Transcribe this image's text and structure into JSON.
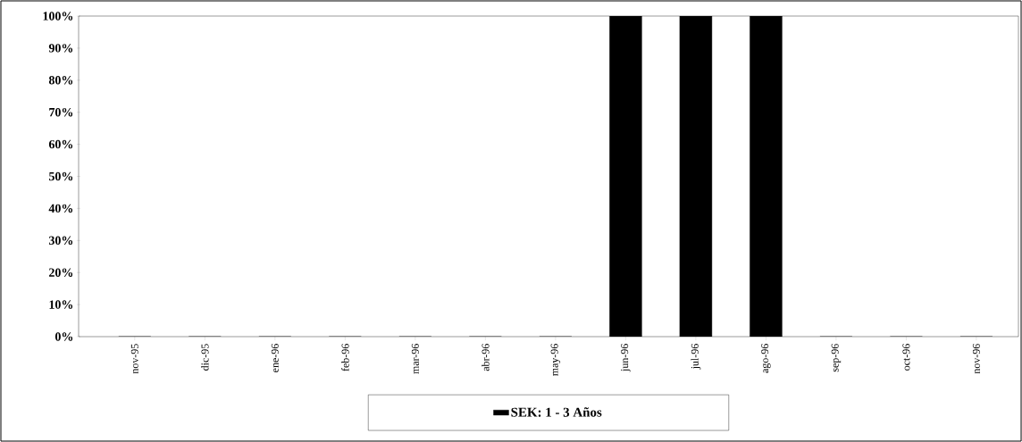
{
  "chart_data": {
    "type": "bar",
    "categories": [
      "nov-95",
      "dic-95",
      "ene-96",
      "feb-96",
      "mar-96",
      "abr-96",
      "may-96",
      "jun-96",
      "jul-96",
      "ago-96",
      "sep-96",
      "oct-96",
      "nov-96"
    ],
    "series": [
      {
        "name": "SEK: 1 - 3 Años",
        "color": "#000000",
        "values": [
          0,
          0,
          0,
          0,
          0,
          0,
          0,
          100,
          100,
          100,
          0,
          0,
          0
        ]
      }
    ],
    "ylim": [
      0,
      100
    ],
    "yticks": [
      {
        "value": 0,
        "label": "0%"
      },
      {
        "value": 10,
        "label": "10%"
      },
      {
        "value": 20,
        "label": "20%"
      },
      {
        "value": 30,
        "label": "30%"
      },
      {
        "value": 40,
        "label": "40%"
      },
      {
        "value": 50,
        "label": "50%"
      },
      {
        "value": 60,
        "label": "60%"
      },
      {
        "value": 70,
        "label": "70%"
      },
      {
        "value": 80,
        "label": "80%"
      },
      {
        "value": 90,
        "label": "90%"
      },
      {
        "value": 100,
        "label": "100%"
      }
    ],
    "grid": false,
    "legend": "bottom"
  }
}
